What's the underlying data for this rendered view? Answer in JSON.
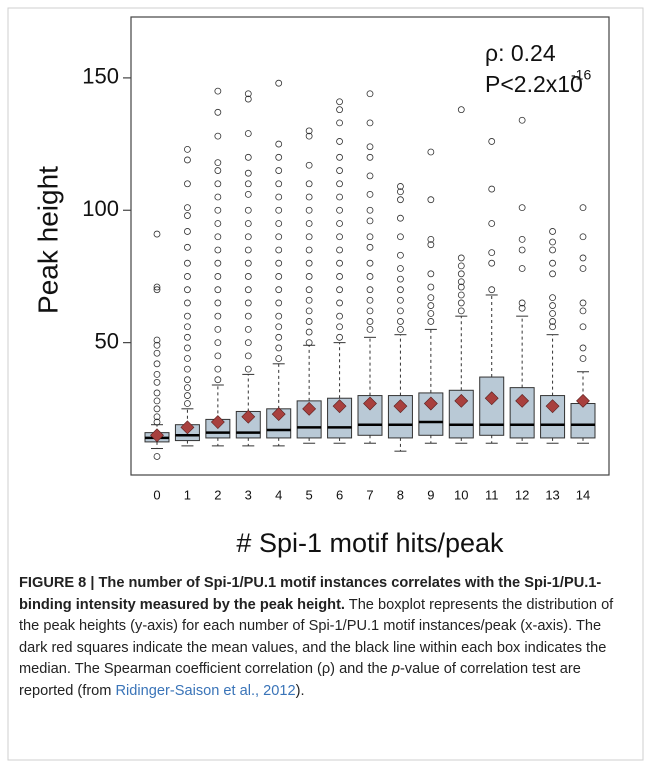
{
  "chart_data": {
    "type": "box",
    "xlabel": "# Spi-1 motif hits/peak",
    "ylabel": "Peak height",
    "annotations": [
      "ρ: 0.24",
      "P<2.2x10",
      "-16"
    ],
    "categories": [
      "0",
      "1",
      "2",
      "3",
      "4",
      "5",
      "6",
      "7",
      "8",
      "9",
      "10",
      "11",
      "12",
      "13",
      "14"
    ],
    "box_color": "#b9c9d6",
    "mean_color": "#a8403e",
    "ylim": [
      0,
      173
    ],
    "yticks": [
      50,
      100,
      150
    ],
    "boxes": [
      {
        "low": 10,
        "q1": 12.5,
        "median": 14,
        "q3": 16,
        "high": 19,
        "mean": 15,
        "outliers": [
          7,
          20,
          22,
          25,
          28,
          31,
          35,
          38,
          42,
          46,
          49,
          51,
          70,
          71,
          91
        ]
      },
      {
        "low": 11,
        "q1": 13,
        "median": 15,
        "q3": 19,
        "high": 25,
        "mean": 18,
        "outliers": [
          27,
          30,
          33,
          36,
          40,
          44,
          48,
          52,
          56,
          60,
          65,
          70,
          75,
          80,
          86,
          92,
          98,
          101,
          110,
          119,
          123
        ]
      },
      {
        "low": 11,
        "q1": 14,
        "median": 16,
        "q3": 21,
        "high": 34,
        "mean": 20,
        "outliers": [
          36,
          40,
          45,
          50,
          55,
          60,
          65,
          70,
          75,
          80,
          85,
          90,
          95,
          100,
          105,
          110,
          115,
          118,
          128,
          137,
          145
        ]
      },
      {
        "low": 11,
        "q1": 14,
        "median": 16,
        "q3": 24,
        "high": 38,
        "mean": 22,
        "outliers": [
          40,
          45,
          50,
          55,
          60,
          65,
          70,
          75,
          80,
          85,
          90,
          95,
          100,
          106,
          110,
          114,
          120,
          129,
          142,
          144
        ]
      },
      {
        "low": 11,
        "q1": 14,
        "median": 17,
        "q3": 25,
        "high": 42,
        "mean": 23,
        "outliers": [
          44,
          48,
          52,
          56,
          60,
          65,
          70,
          75,
          80,
          85,
          90,
          95,
          100,
          105,
          110,
          115,
          120,
          125,
          148
        ]
      },
      {
        "low": 12,
        "q1": 14,
        "median": 18,
        "q3": 28,
        "high": 49,
        "mean": 25,
        "outliers": [
          50,
          54,
          58,
          62,
          66,
          70,
          75,
          80,
          85,
          90,
          95,
          100,
          105,
          110,
          117,
          128,
          130
        ]
      },
      {
        "low": 12,
        "q1": 14,
        "median": 18,
        "q3": 29,
        "high": 50,
        "mean": 26,
        "outliers": [
          52,
          56,
          60,
          65,
          70,
          75,
          80,
          85,
          90,
          95,
          100,
          105,
          110,
          115,
          120,
          126,
          133,
          138,
          141
        ]
      },
      {
        "low": 12,
        "q1": 15,
        "median": 19,
        "q3": 30,
        "high": 52,
        "mean": 27,
        "outliers": [
          55,
          58,
          62,
          66,
          70,
          75,
          80,
          86,
          90,
          96,
          100,
          106,
          113,
          120,
          124,
          133,
          144
        ]
      },
      {
        "low": 9,
        "q1": 14,
        "median": 19,
        "q3": 30,
        "high": 53,
        "mean": 26,
        "outliers": [
          55,
          58,
          62,
          66,
          70,
          74,
          78,
          83,
          90,
          97,
          104,
          107,
          109
        ]
      },
      {
        "low": 12,
        "q1": 15,
        "median": 20,
        "q3": 31,
        "high": 55,
        "mean": 27,
        "outliers": [
          58,
          61,
          64,
          67,
          71,
          76,
          87,
          89,
          104,
          122
        ]
      },
      {
        "low": 12,
        "q1": 14,
        "median": 19,
        "q3": 32,
        "high": 60,
        "mean": 28,
        "outliers": [
          62,
          65,
          68,
          71,
          73,
          76,
          79,
          82,
          138
        ]
      },
      {
        "low": 12,
        "q1": 15,
        "median": 19,
        "q3": 37,
        "high": 68,
        "mean": 29,
        "outliers": [
          70,
          80,
          84,
          95,
          108,
          126
        ]
      },
      {
        "low": 12,
        "q1": 14,
        "median": 19,
        "q3": 33,
        "high": 60,
        "mean": 28,
        "outliers": [
          63,
          65,
          78,
          85,
          89,
          101,
          134
        ]
      },
      {
        "low": 12,
        "q1": 14,
        "median": 19,
        "q3": 30,
        "high": 53,
        "mean": 26,
        "outliers": [
          56,
          58,
          61,
          64,
          67,
          76,
          80,
          85,
          88,
          92
        ]
      },
      {
        "low": 12,
        "q1": 14,
        "median": 19,
        "q3": 27,
        "high": 39,
        "mean": 28,
        "outliers": [
          44,
          48,
          56,
          62,
          65,
          78,
          82,
          90,
          101
        ]
      }
    ]
  },
  "caption": {
    "bold": "FIGURE 8 | The number of Spi-1/PU.1 motif instances correlates with the Spi-1/PU.1-binding intensity measured by the peak height.",
    "text1": " The boxplot represents the distribution of the peak heights (y-axis) for each number of Spi-1/PU.1 motif instances/peak (x-axis). The dark red squares indicate the mean values, and the black line within each box indicates the median. The Spearman coefficient correlation (ρ) and the ",
    "italic": "p",
    "text2": "-value of correlation test are reported (from ",
    "link": "Ridinger-Saison et al., 2012",
    "end": ")."
  }
}
